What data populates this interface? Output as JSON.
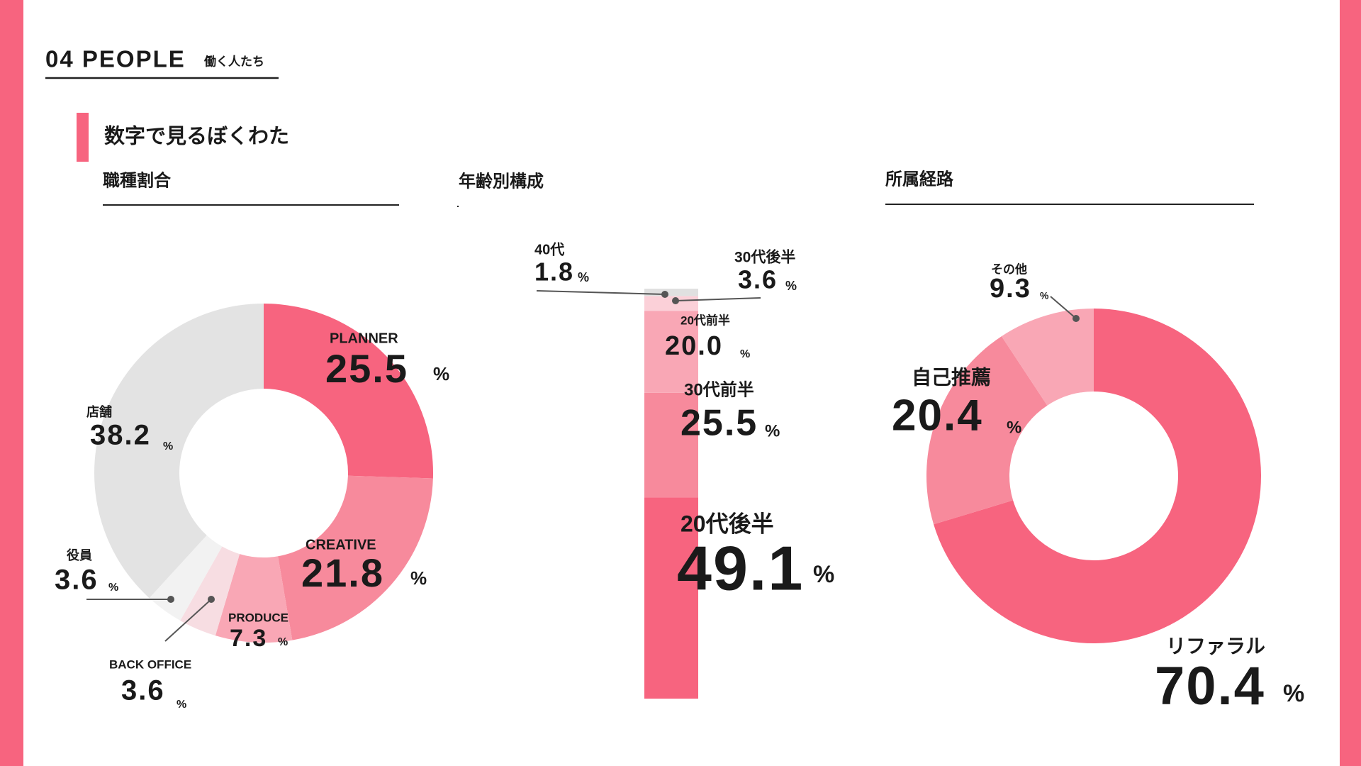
{
  "header": {
    "title": "04 PEOPLE",
    "subtitle": "働く人たち"
  },
  "section": "数字で見るぼくわた",
  "chart_data": [
    {
      "type": "donut",
      "title": "職種割合",
      "unit": "%",
      "categories": [
        "PLANNER",
        "CREATIVE",
        "PRODUCE",
        "BACK OFFICE",
        "役員",
        "店舗"
      ],
      "values": [
        25.5,
        21.8,
        7.3,
        3.6,
        3.6,
        38.2
      ],
      "colors": [
        "#f7647f",
        "#f78a9c",
        "#f9a7b5",
        "#f7dde2",
        "#f2f2f2",
        "#e3e3e3"
      ]
    },
    {
      "type": "stacked",
      "title": "年齢別構成",
      "unit": "%",
      "categories": [
        "20代後半",
        "30代前半",
        "20代前半",
        "30代後半",
        "40代"
      ],
      "values": [
        49.1,
        25.5,
        20.0,
        3.6,
        1.8
      ],
      "value_labels": [
        "49.1",
        "25.5",
        "20.0",
        "3.6",
        "1.8"
      ],
      "colors": [
        "#f7647f",
        "#f78a9c",
        "#f9a7b5",
        "#fbd0d8",
        "#e0e0e0"
      ]
    },
    {
      "type": "donut",
      "title": "所属経路",
      "unit": "%",
      "categories": [
        "リファラル",
        "自己推薦",
        "その他"
      ],
      "values": [
        70.4,
        20.4,
        9.3
      ],
      "colors": [
        "#f7647f",
        "#f78a9c",
        "#f9a7b5"
      ]
    }
  ]
}
